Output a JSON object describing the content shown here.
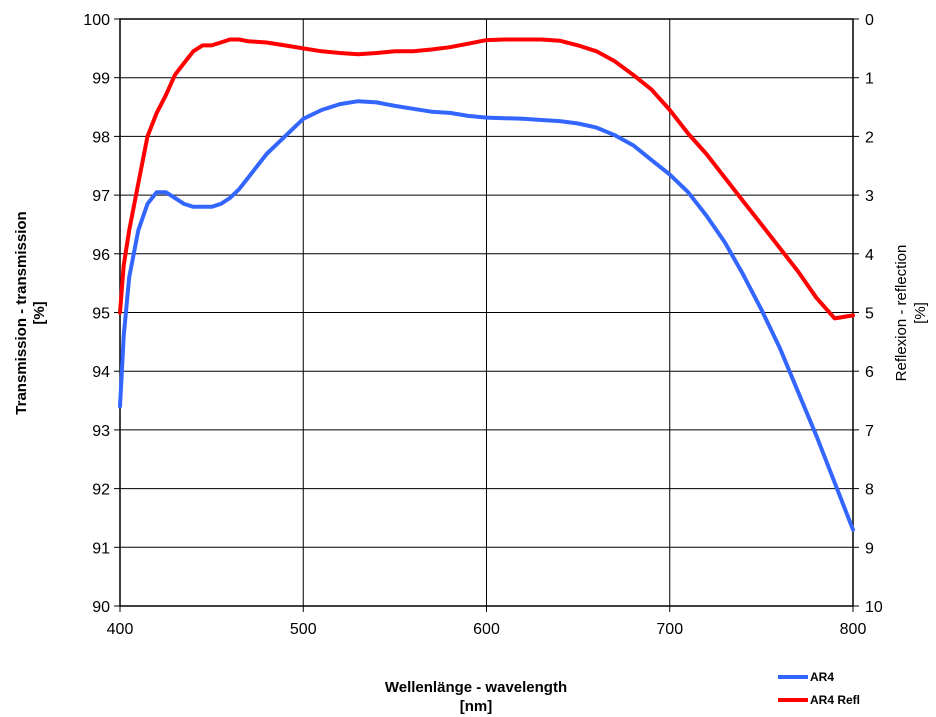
{
  "chart_data": {
    "type": "line",
    "xlabel_line1": "Wellenlänge - wavelength",
    "xlabel_line2": "[nm]",
    "ylabel_line1": "Transmission - transmission",
    "ylabel_line2": "[%]",
    "y2label_line1": "Reflexion - reflection",
    "y2label_line2": "[%]",
    "xlim": [
      400,
      800
    ],
    "ylim": [
      90,
      100
    ],
    "y2lim": [
      10,
      0
    ],
    "y2_inverted": true,
    "x_ticks": [
      "400",
      "500",
      "600",
      "700",
      "800"
    ],
    "y_ticks": [
      "90",
      "91",
      "92",
      "93",
      "94",
      "95",
      "96",
      "97",
      "98",
      "99",
      "100"
    ],
    "y2_ticks": [
      "10",
      "9",
      "8",
      "7",
      "6",
      "5",
      "4",
      "3",
      "2",
      "1",
      "0"
    ],
    "grid": true,
    "legend_position": "bottom-right",
    "series": [
      {
        "name": "AR4",
        "axis": "left",
        "color": "#3366ff",
        "x": [
          400,
          402,
          405,
          410,
          415,
          420,
          425,
          430,
          435,
          440,
          445,
          450,
          455,
          460,
          465,
          470,
          480,
          490,
          500,
          510,
          520,
          530,
          540,
          550,
          560,
          570,
          580,
          590,
          600,
          610,
          620,
          630,
          640,
          650,
          660,
          670,
          680,
          690,
          700,
          710,
          720,
          730,
          740,
          750,
          760,
          770,
          780,
          790,
          800
        ],
        "y": [
          93.4,
          94.6,
          95.6,
          96.4,
          96.85,
          97.05,
          97.05,
          96.95,
          96.85,
          96.8,
          96.8,
          96.8,
          96.85,
          96.95,
          97.1,
          97.3,
          97.7,
          98.0,
          98.3,
          98.45,
          98.55,
          98.6,
          98.58,
          98.52,
          98.47,
          98.42,
          98.4,
          98.35,
          98.32,
          98.31,
          98.3,
          98.28,
          98.26,
          98.22,
          98.15,
          98.02,
          97.85,
          97.6,
          97.35,
          97.05,
          96.65,
          96.2,
          95.65,
          95.05,
          94.4,
          93.65,
          92.9,
          92.1,
          91.3
        ]
      },
      {
        "name": "AR4 Refl",
        "axis": "right",
        "color": "#ff0000",
        "x": [
          400,
          402,
          405,
          410,
          415,
          420,
          425,
          430,
          435,
          440,
          445,
          450,
          455,
          460,
          465,
          470,
          480,
          490,
          500,
          510,
          520,
          530,
          540,
          550,
          560,
          570,
          580,
          590,
          600,
          610,
          620,
          630,
          640,
          650,
          660,
          670,
          680,
          690,
          700,
          710,
          720,
          730,
          740,
          750,
          760,
          770,
          780,
          790,
          800
        ],
        "y": [
          5.0,
          4.2,
          3.6,
          2.8,
          2.0,
          1.6,
          1.3,
          0.95,
          0.75,
          0.55,
          0.45,
          0.45,
          0.4,
          0.35,
          0.35,
          0.38,
          0.4,
          0.45,
          0.5,
          0.55,
          0.58,
          0.6,
          0.58,
          0.55,
          0.55,
          0.52,
          0.48,
          0.42,
          0.36,
          0.35,
          0.35,
          0.35,
          0.37,
          0.45,
          0.55,
          0.72,
          0.95,
          1.2,
          1.55,
          1.95,
          2.3,
          2.7,
          3.1,
          3.5,
          3.9,
          4.3,
          4.75,
          5.1,
          5.05
        ]
      }
    ]
  }
}
